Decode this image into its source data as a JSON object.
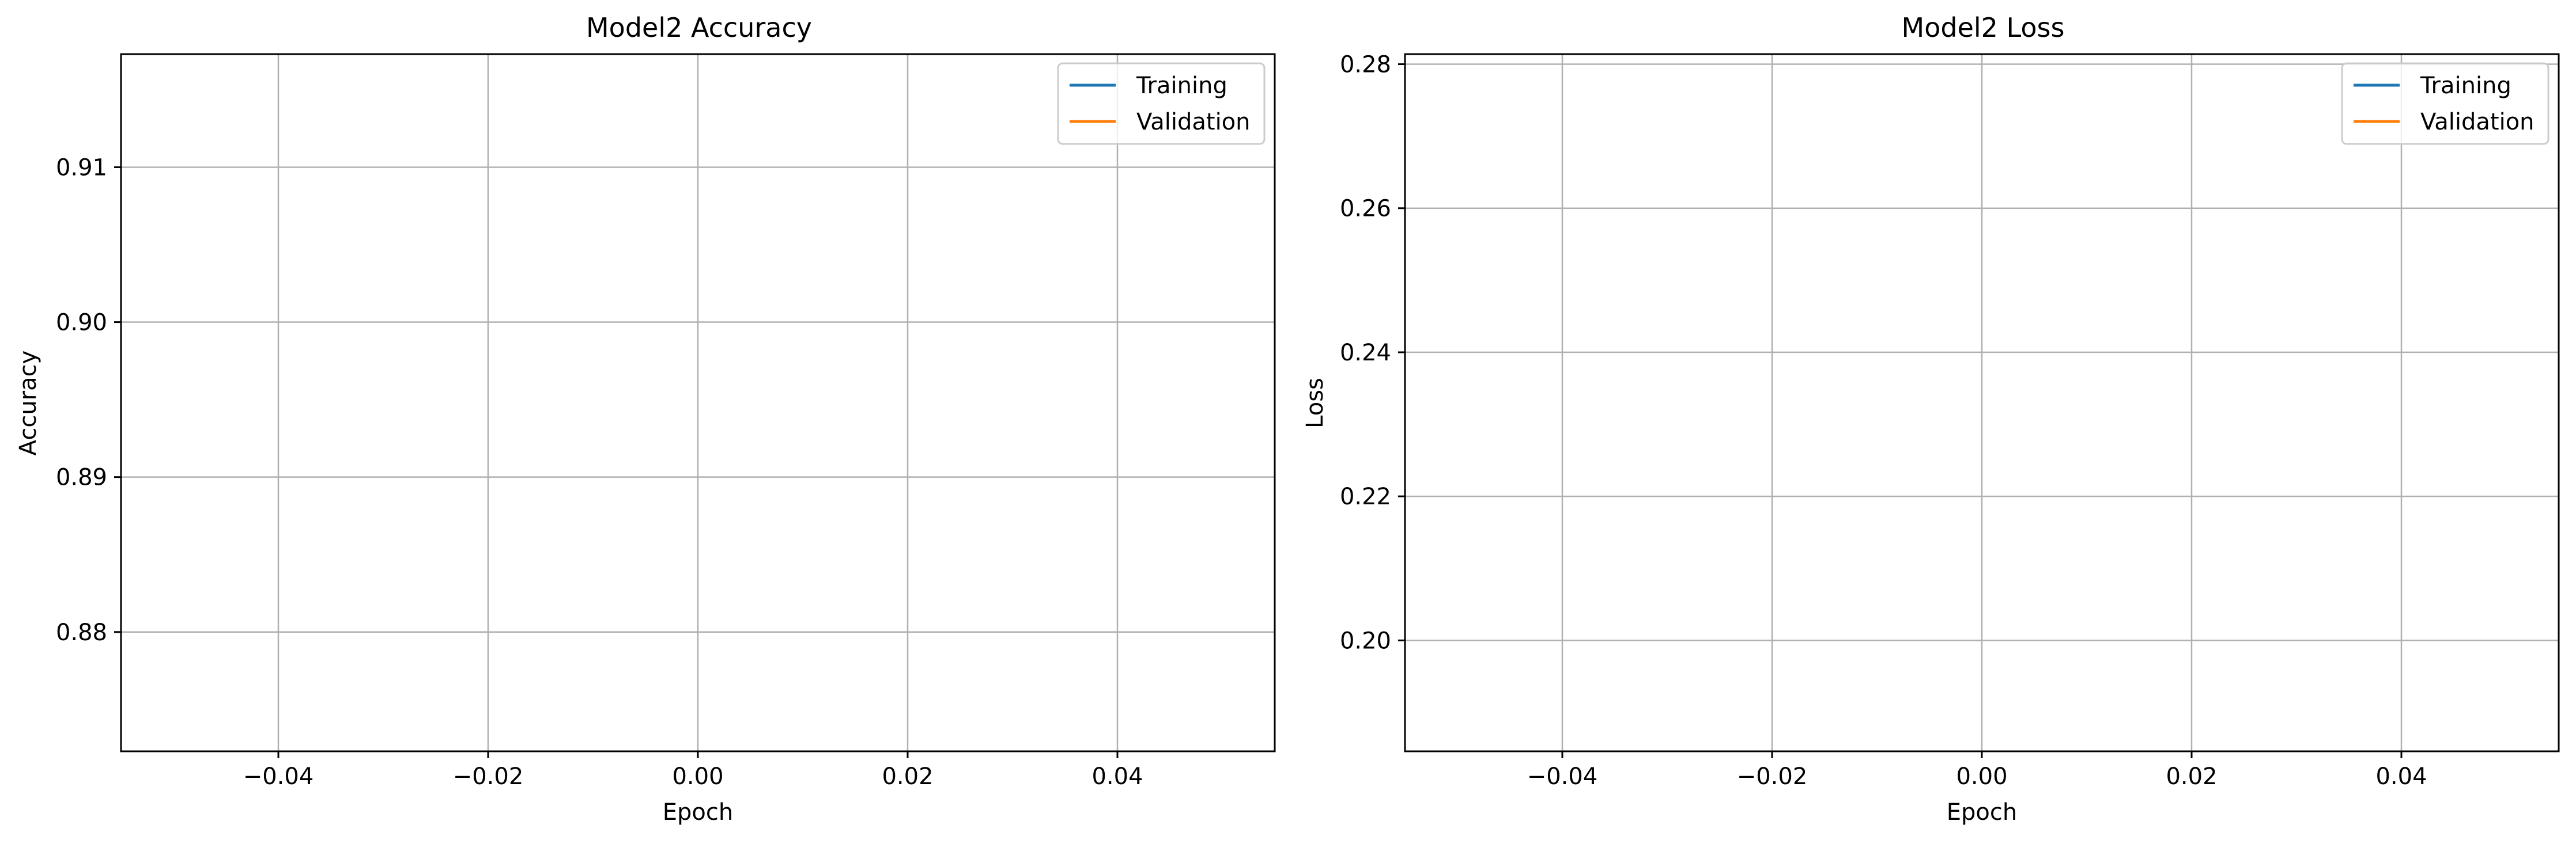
{
  "figure": {
    "background": "#ffffff"
  },
  "chart_data": [
    {
      "type": "line",
      "title": "Model2 Accuracy",
      "xlabel": "Epoch",
      "ylabel": "Accuracy",
      "xlim": [
        -0.055,
        0.055
      ],
      "ylim": [
        0.8723,
        0.9173
      ],
      "xticks": [
        -0.04,
        -0.02,
        0.0,
        0.02,
        0.04
      ],
      "xtick_labels": [
        "−0.04",
        "−0.02",
        "0.00",
        "0.02",
        "0.04"
      ],
      "yticks": [
        0.88,
        0.89,
        0.9,
        0.91
      ],
      "ytick_labels": [
        "0.88",
        "0.89",
        "0.90",
        "0.91"
      ],
      "grid": true,
      "legend_placement": "top-right",
      "series": [
        {
          "name": "Training",
          "color": "#1f77b4",
          "x": [],
          "y": []
        },
        {
          "name": "Validation",
          "color": "#ff7f0e",
          "x": [],
          "y": []
        }
      ]
    },
    {
      "type": "line",
      "title": "Model2 Loss",
      "xlabel": "Epoch",
      "ylabel": "Loss",
      "xlim": [
        -0.055,
        0.055
      ],
      "ylim": [
        0.1846,
        0.2814
      ],
      "xticks": [
        -0.04,
        -0.02,
        0.0,
        0.02,
        0.04
      ],
      "xtick_labels": [
        "−0.04",
        "−0.02",
        "0.00",
        "0.02",
        "0.04"
      ],
      "yticks": [
        0.2,
        0.22,
        0.24,
        0.26,
        0.28
      ],
      "ytick_labels": [
        "0.20",
        "0.22",
        "0.24",
        "0.26",
        "0.28"
      ],
      "grid": true,
      "legend_placement": "top-right",
      "series": [
        {
          "name": "Training",
          "color": "#1f77b4",
          "x": [],
          "y": []
        },
        {
          "name": "Validation",
          "color": "#ff7f0e",
          "x": [],
          "y": []
        }
      ]
    }
  ]
}
